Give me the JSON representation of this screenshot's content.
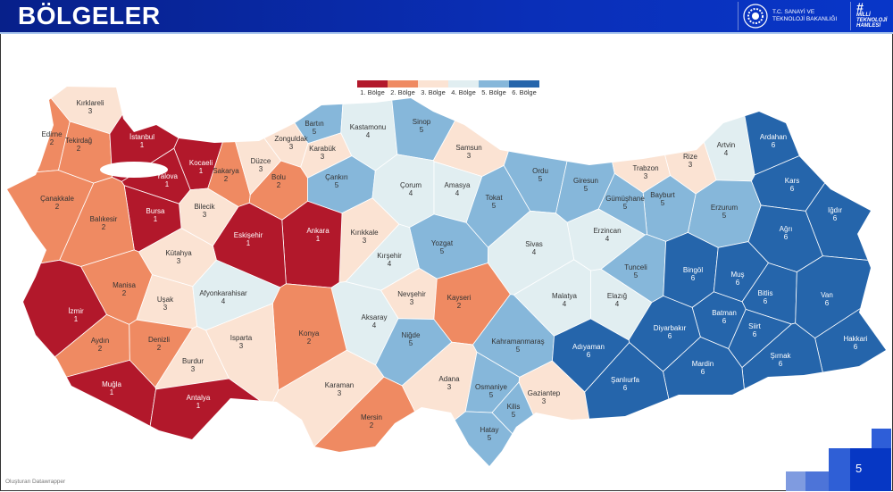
{
  "header": {
    "title": "BÖLGELER",
    "ministry": "T.C. SANAYİ VE TEKNOLOJİ BAKANLIĞI",
    "campaign_hash": "#",
    "campaign": "MİLLİ TEKNOLOJİ HAMLESİ"
  },
  "legend": [
    {
      "label": "1. Bölge",
      "color": "#b2182b"
    },
    {
      "label": "2. Bölge",
      "color": "#ef8a62"
    },
    {
      "label": "3. Bölge",
      "color": "#fbe3d3"
    },
    {
      "label": "4. Bölge",
      "color": "#e1eef1"
    },
    {
      "label": "5. Bölge",
      "color": "#86b7da"
    },
    {
      "label": "6. Bölge",
      "color": "#2565ab"
    }
  ],
  "provinces": [
    {
      "name": "Kırklareli",
      "region": 3
    },
    {
      "name": "Edirne",
      "region": 2
    },
    {
      "name": "Tekirdağ",
      "region": 2
    },
    {
      "name": "İstanbul",
      "region": 1
    },
    {
      "name": "Kocaeli",
      "region": 1
    },
    {
      "name": "Yalova",
      "region": 1
    },
    {
      "name": "Sakarya",
      "region": 2
    },
    {
      "name": "Düzce",
      "region": 3
    },
    {
      "name": "Zonguldak",
      "region": 3
    },
    {
      "name": "Bartın",
      "region": 5
    },
    {
      "name": "Karabük",
      "region": 3
    },
    {
      "name": "Kastamonu",
      "region": 4
    },
    {
      "name": "Sinop",
      "region": 5
    },
    {
      "name": "Samsun",
      "region": 3
    },
    {
      "name": "Bolu",
      "region": 2
    },
    {
      "name": "Çankırı",
      "region": 5
    },
    {
      "name": "Çorum",
      "region": 4
    },
    {
      "name": "Amasya",
      "region": 4
    },
    {
      "name": "Ordu",
      "region": 5
    },
    {
      "name": "Giresun",
      "region": 5
    },
    {
      "name": "Trabzon",
      "region": 3
    },
    {
      "name": "Rize",
      "region": 3
    },
    {
      "name": "Artvin",
      "region": 4
    },
    {
      "name": "Ardahan",
      "region": 6
    },
    {
      "name": "Kars",
      "region": 6
    },
    {
      "name": "Iğdır",
      "region": 6
    },
    {
      "name": "Ağrı",
      "region": 6
    },
    {
      "name": "Erzurum",
      "region": 5
    },
    {
      "name": "Bayburt",
      "region": 5
    },
    {
      "name": "Gümüşhane",
      "region": 5
    },
    {
      "name": "Tokat",
      "region": 5
    },
    {
      "name": "Erzincan",
      "region": 4
    },
    {
      "name": "Sivas",
      "region": 4
    },
    {
      "name": "Yozgat",
      "region": 5
    },
    {
      "name": "Kırıkkale",
      "region": 3
    },
    {
      "name": "Ankara",
      "region": 1
    },
    {
      "name": "Eskişehir",
      "region": 1
    },
    {
      "name": "Bilecik",
      "region": 3
    },
    {
      "name": "Bursa",
      "region": 1
    },
    {
      "name": "Balıkesir",
      "region": 2
    },
    {
      "name": "Çanakkale",
      "region": 2
    },
    {
      "name": "Kütahya",
      "region": 3
    },
    {
      "name": "Manisa",
      "region": 2
    },
    {
      "name": "İzmir",
      "region": 1
    },
    {
      "name": "Uşak",
      "region": 3
    },
    {
      "name": "Afyonkarahisar",
      "region": 4
    },
    {
      "name": "Kırşehir",
      "region": 4
    },
    {
      "name": "Nevşehir",
      "region": 3
    },
    {
      "name": "Kayseri",
      "region": 2
    },
    {
      "name": "Aksaray",
      "region": 4
    },
    {
      "name": "Niğde",
      "region": 5
    },
    {
      "name": "Konya",
      "region": 2
    },
    {
      "name": "Isparta",
      "region": 3
    },
    {
      "name": "Burdur",
      "region": 3
    },
    {
      "name": "Denizli",
      "region": 2
    },
    {
      "name": "Aydın",
      "region": 2
    },
    {
      "name": "Muğla",
      "region": 1
    },
    {
      "name": "Antalya",
      "region": 1
    },
    {
      "name": "Karaman",
      "region": 3
    },
    {
      "name": "Mersin",
      "region": 2
    },
    {
      "name": "Adana",
      "region": 3
    },
    {
      "name": "Osmaniye",
      "region": 5
    },
    {
      "name": "Hatay",
      "region": 5
    },
    {
      "name": "Kilis",
      "region": 5
    },
    {
      "name": "Gaziantep",
      "region": 3
    },
    {
      "name": "Kahramanmaraş",
      "region": 5
    },
    {
      "name": "Malatya",
      "region": 4
    },
    {
      "name": "Elazığ",
      "region": 4
    },
    {
      "name": "Tunceli",
      "region": 5
    },
    {
      "name": "Bingöl",
      "region": 6
    },
    {
      "name": "Muş",
      "region": 6
    },
    {
      "name": "Bitlis",
      "region": 6
    },
    {
      "name": "Van",
      "region": 6
    },
    {
      "name": "Hakkari",
      "region": 6
    },
    {
      "name": "Şırnak",
      "region": 6
    },
    {
      "name": "Siirt",
      "region": 6
    },
    {
      "name": "Batman",
      "region": 6
    },
    {
      "name": "Mardin",
      "region": 6
    },
    {
      "name": "Diyarbakır",
      "region": 6
    },
    {
      "name": "Şanlıurfa",
      "region": 6
    },
    {
      "name": "Adıyaman",
      "region": 6
    }
  ],
  "footer": {
    "credit": "Oluşturan Datawrapper",
    "page": "5"
  }
}
